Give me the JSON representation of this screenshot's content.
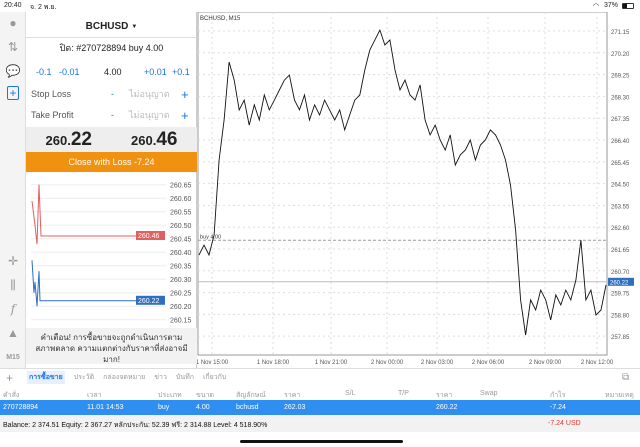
{
  "status": {
    "time": "20:40",
    "date": "จ. 2 พ.ย.",
    "battery": "37%"
  },
  "toolbar": {
    "icons": [
      "account-icon",
      "trade-icon",
      "chat-icon",
      "new-order-icon",
      "crosshair-icon",
      "candles-icon",
      "indicator-icon",
      "objects-icon"
    ],
    "timeframe": "M15"
  },
  "order": {
    "symbol": "BCHUSD",
    "title": "ปิด: #270728894 buy 4.00",
    "steps": [
      "-0.1",
      "-0.01",
      "+0.01",
      "+0.1"
    ],
    "volume": "4.00",
    "stop_loss": {
      "label": "Stop Loss",
      "value": "ไม่อนุญาต",
      "minus": "-",
      "plus": "+"
    },
    "take_profit": {
      "label": "Take Profit",
      "value": "ไม่อนุญาต",
      "minus": "-",
      "plus": "+"
    },
    "bid": {
      "main": "260.",
      "big": "22"
    },
    "ask": {
      "main": "260.",
      "big": "46"
    },
    "close_button": "Close with Loss -7.24",
    "mini_axis": [
      "260.65",
      "260.60",
      "260.55",
      "260.50",
      "260.45",
      "260.40",
      "260.35",
      "260.30",
      "260.25",
      "260.20",
      "260.15"
    ],
    "ask_label": "260.46",
    "bid_label": "260.22",
    "warning": "คำเตือน! การซื้อขายจะถูกดำเนินการตามสภาพตลาด ความแตกต่างกับราคาที่ส่งอาจมีมาก!"
  },
  "chart_data": {
    "type": "line",
    "title": "BCHUSD, M15",
    "y_ticks": [
      "271.15",
      "270.20",
      "269.25",
      "268.30",
      "267.35",
      "266.40",
      "265.45",
      "264.50",
      "263.55",
      "262.60",
      "261.65",
      "260.70",
      "259.75",
      "258.80",
      "257.85"
    ],
    "ylim": [
      257.4,
      271.95
    ],
    "x_ticks": [
      "1 Nov 15:00",
      "1 Nov 18:00",
      "1 Nov 21:00",
      "2 Nov 00:00",
      "2 Nov 03:00",
      "2 Nov 06:00",
      "2 Nov 09:00",
      "2 Nov 12:00"
    ],
    "values": [
      261.39,
      261.82,
      261.39,
      262.26,
      265.53,
      267.27,
      269.8,
      269.01,
      267.71,
      268.14,
      267.05,
      267.93,
      267.27,
      268.36,
      267.71,
      268.14,
      268.58,
      269.01,
      269.23,
      268.14,
      267.71,
      268.36,
      267.27,
      267.93,
      267.49,
      268.14,
      267.71,
      267.27,
      267.71,
      266.84,
      267.49,
      268.14,
      268.36,
      269.45,
      270.32,
      270.76,
      271.19,
      270.54,
      270.76,
      269.45,
      268.58,
      269.01,
      268.36,
      268.14,
      268.8,
      267.27,
      266.62,
      267.05,
      266.4,
      265.96,
      266.62,
      265.31,
      265.75,
      265.96,
      266.4,
      265.53,
      266.18,
      266.4,
      266.84,
      266.62,
      266.18,
      265.53,
      264.44,
      262.48,
      259.43,
      257.9,
      259.43,
      258.99,
      259.86,
      259.43,
      258.56,
      259.65,
      259.21,
      259.86,
      259.43,
      260.3,
      262.04,
      259.43,
      259.86,
      258.77,
      258.99,
      260.08
    ],
    "buy_line": {
      "label": "buy 4.00",
      "price": 262.03
    },
    "bid_price": "260.22",
    "grid": true,
    "line_color": "#111111",
    "bid_color": "#2f6fbf"
  },
  "tabs": [
    "การซื้อขาย",
    "ประวัติ",
    "กล่องจดหมาย",
    "ข่าว",
    "บันทึก",
    "เกี่ยวกับ"
  ],
  "table": {
    "headers": [
      "คำสั่ง",
      "เวลา",
      "ประเภท",
      "ขนาด",
      "สัญลักษณ์",
      "ราคา",
      "S/L",
      "T/P",
      "ราคา",
      "Swap",
      "กำไร",
      "หมายเหตุ"
    ],
    "rows": [
      [
        "270728894",
        "11.01 14:53",
        "buy",
        "4.00",
        "bchusd",
        "262.03",
        "",
        "",
        "260.22",
        "",
        "-7.24",
        ""
      ]
    ]
  },
  "balance": {
    "text": "Balance: 2 374.51 Equity: 2 367.27 หลักประกัน: 52.39 ฟรี: 2 314.88 Level: 4 518.90%",
    "profit": "-7.24  USD"
  },
  "colors": {
    "accent": "#1a73e8",
    "close_button": "#f0920f",
    "selected_row": "#2f8ff0",
    "loss": "#e53935",
    "ask": "#e06060",
    "bid": "#2f6fbf"
  }
}
